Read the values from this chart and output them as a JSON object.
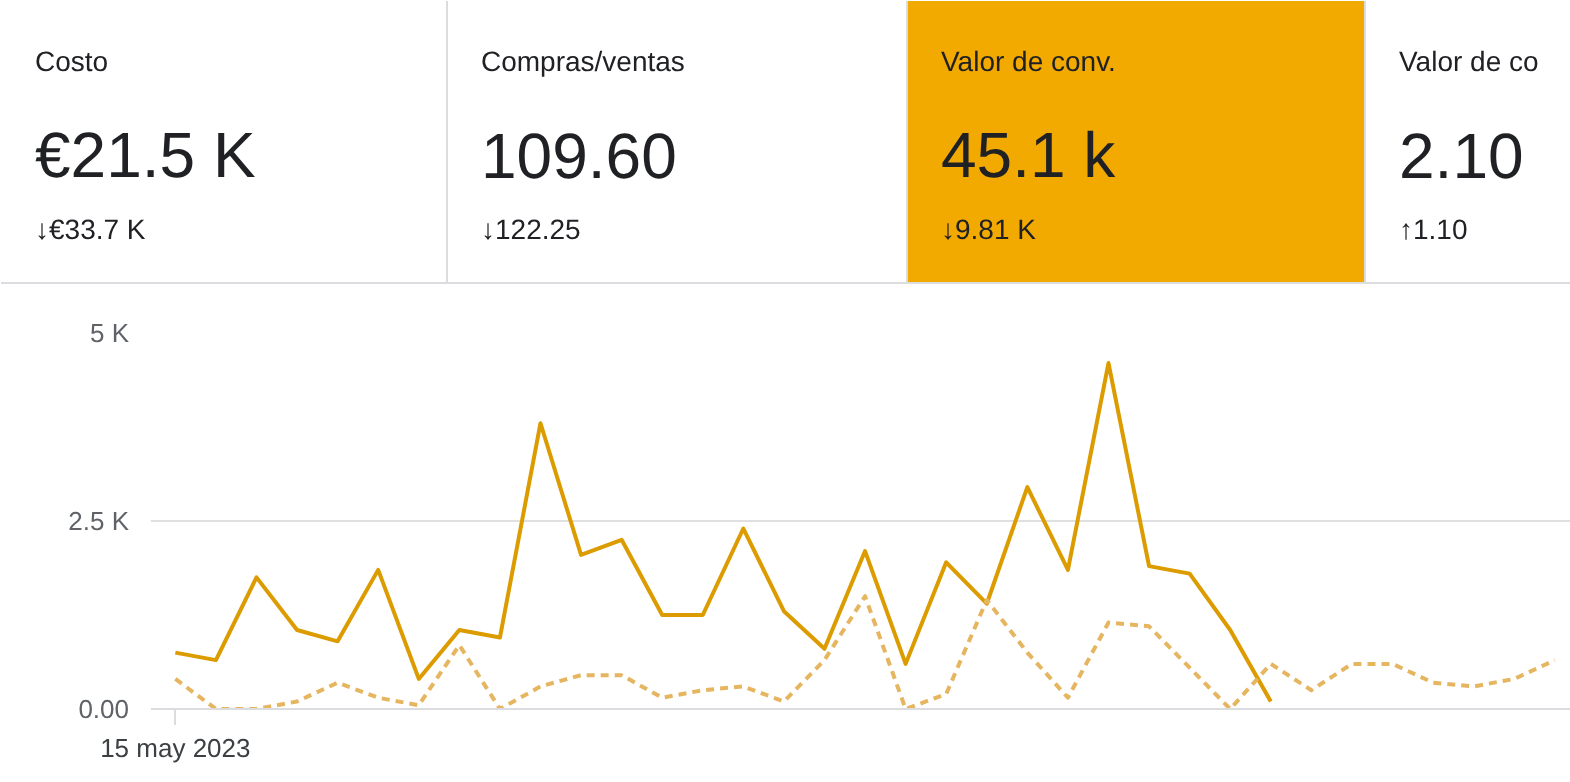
{
  "chart_data": [
    {
      "type": "other",
      "annotations": [
        "Costo",
        "€21.5 K",
        "↓€33.7 K",
        "Compras/ventas",
        "109.60",
        "↓122.25",
        "Valor de conv.",
        "45.1 k",
        "↓9.81 K",
        "Valor de co",
        "2.10",
        "↑1.10"
      ],
      "colors": [
        "#ffffff",
        "#ffffff",
        "#f2a900",
        "#ffffff"
      ]
    },
    {
      "type": "line",
      "categories": [
        "15 may 2023",
        null,
        null,
        null,
        null,
        null,
        null,
        null,
        null,
        null,
        null,
        null,
        null,
        null,
        null,
        null,
        null,
        null,
        null,
        null,
        null,
        null,
        null,
        null,
        null,
        null,
        null,
        null,
        null,
        null,
        null,
        null,
        null,
        null,
        null
      ],
      "series": [
        {
          "color": "#dc9c00",
          "line_style": "solid",
          "values": [
            750,
            650,
            1750,
            1050,
            900,
            1850,
            400,
            1050,
            950,
            3800,
            2050,
            2250,
            1250,
            1250,
            2400,
            1300,
            800,
            2100,
            600,
            1950,
            1400,
            2950,
            1850,
            4600,
            1900,
            1800,
            1050,
            100,
            null,
            null,
            null,
            null,
            null,
            null,
            null
          ]
        },
        {
          "color": "#e6b560",
          "line_style": "dashed",
          "values": [
            400,
            0,
            0,
            100,
            350,
            150,
            50,
            850,
            0,
            300,
            450,
            450,
            150,
            250,
            300,
            100,
            650,
            1500,
            0,
            200,
            1450,
            750,
            150,
            1150,
            1100,
            550,
            0,
            600,
            250,
            600,
            600,
            350,
            300,
            400,
            650
          ]
        }
      ],
      "ylim": [
        0,
        5000
      ],
      "yticks": [
        {
          "value": 0,
          "label": "0.00"
        },
        {
          "value": 2500,
          "label": "2.5 K"
        },
        {
          "value": 5000,
          "label": "5 K"
        }
      ],
      "grid": "y"
    }
  ]
}
